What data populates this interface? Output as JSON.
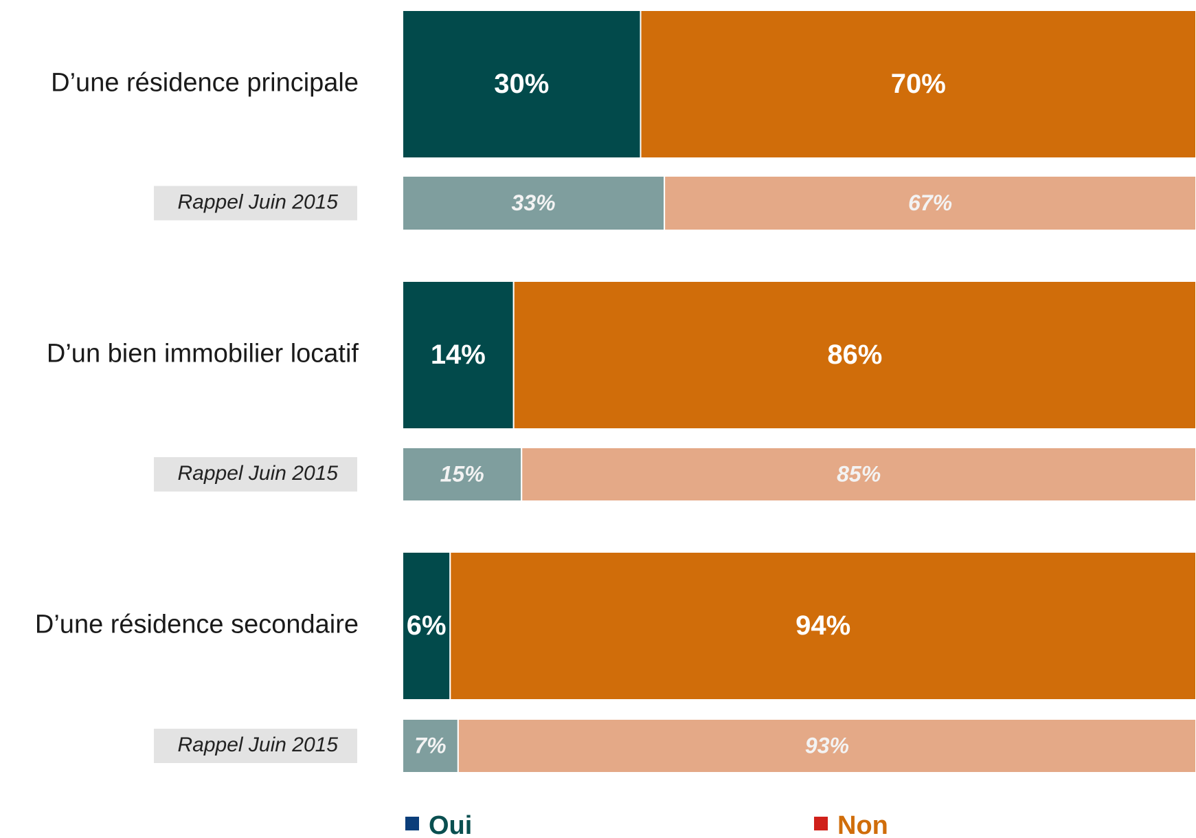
{
  "chart_data": {
    "type": "stacked_barh",
    "categories": [
      "D’une résidence principale",
      "Rappel Juin 2015",
      "D’un bien immobilier locatif",
      "Rappel Juin 2015",
      "D’une résidence secondaire",
      "Rappel Juin 2015"
    ],
    "xlim": [
      0,
      100
    ],
    "series": [
      {
        "name": "Oui",
        "color": "#0b3e7a",
        "label_color": "#0a4f50",
        "colors": [
          "#024a4b",
          "#7f9e9e",
          "#024a4b",
          "#7f9e9e",
          "#024a4b",
          "#7f9e9e"
        ],
        "values": [
          30,
          33,
          14,
          15,
          6,
          7
        ],
        "value_labels": [
          "30%",
          "33%",
          "14%",
          "15%",
          "6%",
          "7%"
        ]
      },
      {
        "name": "Non",
        "color": "#d0201a",
        "label_color": "#d06d0a",
        "colors": [
          "#d06d0a",
          "#e4a987",
          "#d06d0a",
          "#e4a987",
          "#d06d0a",
          "#e4a987"
        ],
        "values": [
          70,
          67,
          86,
          85,
          94,
          93
        ],
        "value_labels": [
          "70%",
          "67%",
          "86%",
          "85%",
          "94%",
          "93%"
        ]
      }
    ]
  }
}
